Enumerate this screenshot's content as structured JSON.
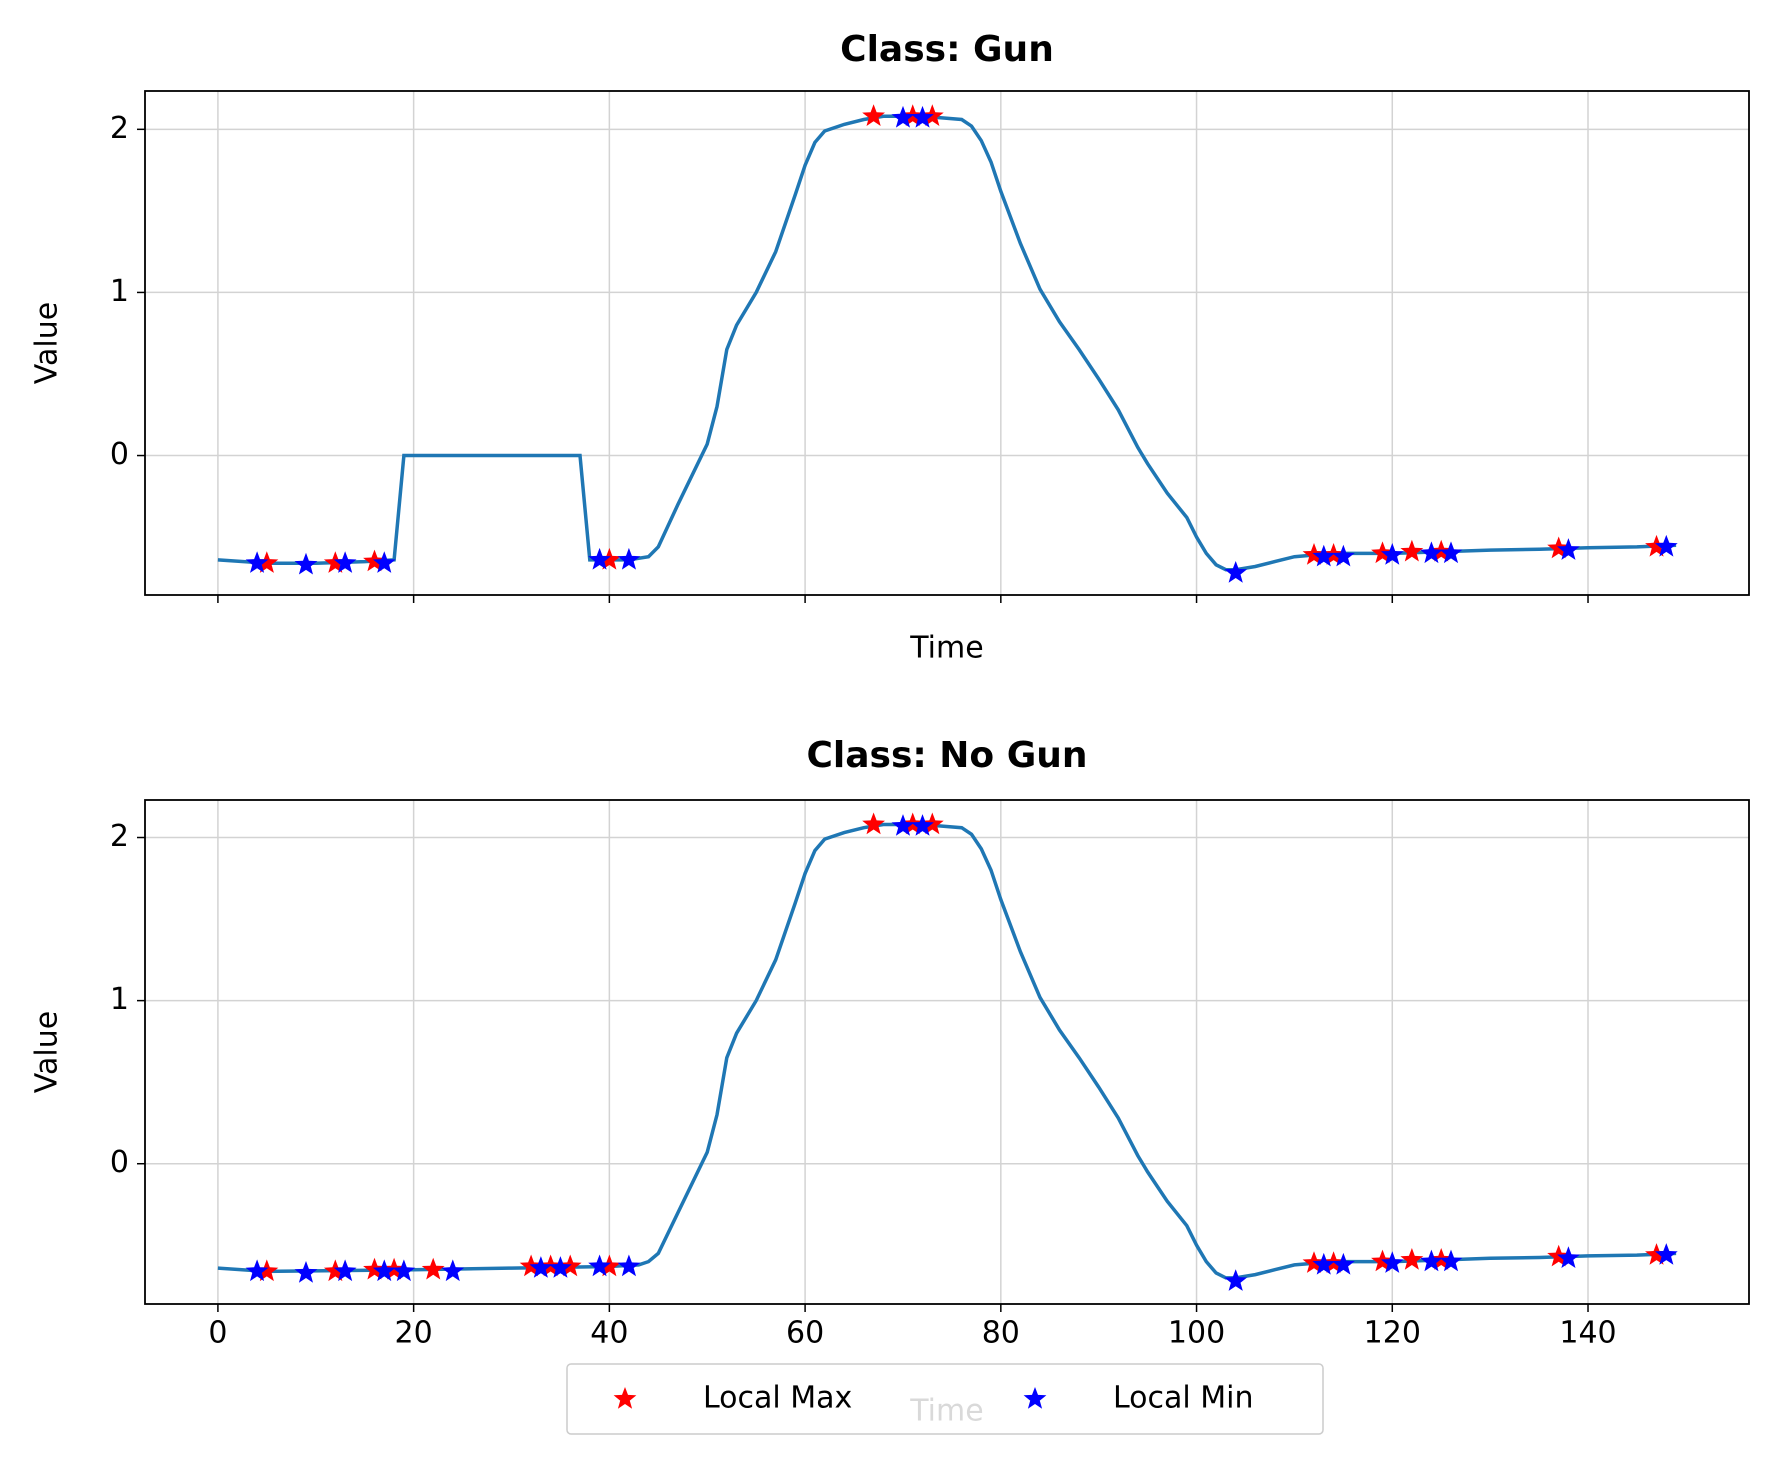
{
  "chart_data": [
    {
      "type": "line",
      "title": "Class: Gun",
      "xlabel": "Time",
      "ylabel": "Value",
      "color": "#1f77b4",
      "x": [
        0,
        5,
        10,
        15,
        18,
        19,
        37,
        38,
        42,
        44,
        45,
        47,
        50,
        51,
        52,
        53,
        55,
        57,
        59,
        60,
        61,
        62,
        64,
        66,
        68,
        70,
        72,
        74,
        76,
        77,
        78,
        79,
        80,
        82,
        84,
        86,
        88,
        90,
        92,
        94,
        95,
        97,
        99,
        100,
        101,
        102,
        103,
        104,
        106,
        108,
        110,
        112,
        115,
        120,
        125,
        130,
        135,
        140,
        145,
        149
      ],
      "values": [
        -0.64,
        -0.66,
        -0.66,
        -0.65,
        -0.64,
        0,
        0,
        -0.64,
        -0.64,
        -0.62,
        -0.56,
        -0.3,
        0.07,
        0.3,
        0.65,
        0.8,
        1.0,
        1.25,
        1.6,
        1.78,
        1.92,
        1.99,
        2.03,
        2.06,
        2.08,
        2.08,
        2.08,
        2.07,
        2.06,
        2.02,
        1.93,
        1.8,
        1.62,
        1.3,
        1.02,
        0.82,
        0.65,
        0.47,
        0.28,
        0.05,
        -0.05,
        -0.23,
        -0.38,
        -0.5,
        -0.6,
        -0.67,
        -0.7,
        -0.7,
        -0.68,
        -0.65,
        -0.62,
        -0.61,
        -0.6,
        -0.6,
        -0.59,
        -0.58,
        -0.575,
        -0.565,
        -0.56,
        -0.55
      ],
      "series": [
        {
          "name": "Local Max",
          "color": "#ff0000",
          "x": [
            5,
            12,
            16,
            40,
            67,
            71,
            73,
            112,
            114,
            119,
            122,
            125,
            137,
            147
          ],
          "values": [
            -0.66,
            -0.66,
            -0.65,
            -0.64,
            2.08,
            2.08,
            2.08,
            -0.61,
            -0.61,
            -0.6,
            -0.59,
            -0.59,
            -0.57,
            -0.56
          ]
        },
        {
          "name": "Local Min",
          "color": "#0000ff",
          "x": [
            4,
            9,
            13,
            17,
            39,
            42,
            70,
            72,
            104,
            113,
            115,
            120,
            124,
            126,
            138,
            148
          ],
          "values": [
            -0.66,
            -0.67,
            -0.66,
            -0.66,
            -0.64,
            -0.64,
            2.07,
            2.07,
            -0.72,
            -0.62,
            -0.62,
            -0.61,
            -0.6,
            -0.6,
            -0.58,
            -0.56
          ]
        }
      ],
      "xlim": [
        -7.45,
        156.45
      ],
      "ylim": [
        -0.855,
        2.235
      ],
      "xticks": [
        0,
        20,
        40,
        60,
        80,
        100,
        120,
        140
      ],
      "yticks": [
        0,
        1,
        2
      ],
      "show_xtick_labels": false,
      "grid": true
    },
    {
      "type": "line",
      "title": "Class: No Gun",
      "xlabel": "Time",
      "ylabel": "Value",
      "color": "#1f77b4",
      "x": [
        0,
        5,
        20,
        30,
        40,
        43,
        44,
        45,
        47,
        50,
        51,
        52,
        53,
        55,
        57,
        59,
        60,
        61,
        62,
        64,
        66,
        68,
        70,
        72,
        74,
        76,
        77,
        78,
        79,
        80,
        82,
        84,
        86,
        88,
        90,
        92,
        94,
        95,
        97,
        99,
        100,
        101,
        102,
        103,
        104,
        106,
        108,
        110,
        112,
        115,
        120,
        125,
        130,
        135,
        140,
        145,
        149
      ],
      "values": [
        -0.64,
        -0.66,
        -0.65,
        -0.64,
        -0.63,
        -0.62,
        -0.6,
        -0.55,
        -0.3,
        0.07,
        0.3,
        0.65,
        0.8,
        1.0,
        1.25,
        1.6,
        1.78,
        1.92,
        1.99,
        2.03,
        2.06,
        2.08,
        2.08,
        2.08,
        2.07,
        2.06,
        2.02,
        1.93,
        1.8,
        1.62,
        1.3,
        1.02,
        0.82,
        0.65,
        0.47,
        0.28,
        0.05,
        -0.05,
        -0.23,
        -0.38,
        -0.5,
        -0.6,
        -0.67,
        -0.7,
        -0.7,
        -0.68,
        -0.65,
        -0.62,
        -0.61,
        -0.6,
        -0.6,
        -0.59,
        -0.58,
        -0.575,
        -0.565,
        -0.56,
        -0.55
      ],
      "series": [
        {
          "name": "Local Max",
          "color": "#ff0000",
          "x": [
            5,
            12,
            16,
            18,
            22,
            32,
            34,
            36,
            40,
            67,
            71,
            73,
            112,
            114,
            119,
            122,
            125,
            137,
            147
          ],
          "values": [
            -0.66,
            -0.66,
            -0.65,
            -0.65,
            -0.65,
            -0.63,
            -0.63,
            -0.63,
            -0.63,
            2.08,
            2.08,
            2.08,
            -0.61,
            -0.61,
            -0.6,
            -0.59,
            -0.59,
            -0.57,
            -0.56
          ]
        },
        {
          "name": "Local Min",
          "color": "#0000ff",
          "x": [
            4,
            9,
            13,
            17,
            19,
            24,
            33,
            35,
            39,
            42,
            70,
            72,
            104,
            113,
            115,
            120,
            124,
            126,
            138,
            148
          ],
          "values": [
            -0.66,
            -0.67,
            -0.66,
            -0.66,
            -0.66,
            -0.66,
            -0.64,
            -0.64,
            -0.63,
            -0.63,
            2.07,
            2.07,
            -0.72,
            -0.62,
            -0.62,
            -0.61,
            -0.6,
            -0.6,
            -0.58,
            -0.56
          ]
        }
      ],
      "xlim": [
        -7.45,
        156.45
      ],
      "ylim": [
        -0.86,
        2.23
      ],
      "xticks": [
        0,
        20,
        40,
        60,
        80,
        100,
        120,
        140
      ],
      "yticks": [
        0,
        1,
        2
      ],
      "show_xtick_labels": true,
      "grid": true,
      "legend": "bottom"
    }
  ]
}
